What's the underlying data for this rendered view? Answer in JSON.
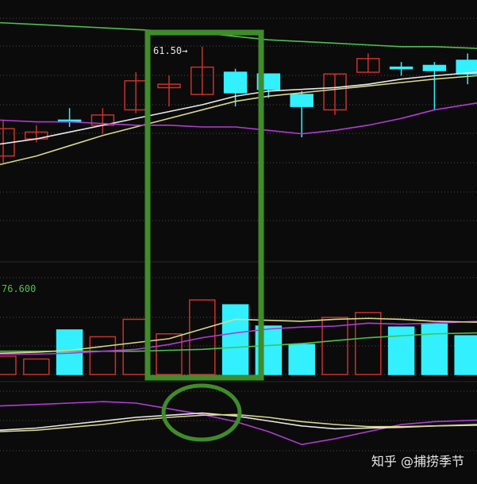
{
  "watermark": "知乎 @捕捞季节",
  "colors": {
    "background": "#0b0b0b",
    "grid": "#4a4a4a",
    "up": "#c8322a",
    "down": "#33f0ff",
    "ma_white": "#e8e8e8",
    "ma_yellow": "#d8d88a",
    "ma_green": "#4cc04c",
    "ma_purple": "#b23bd6",
    "highlight": "#3f8c2a"
  },
  "chart_data": [
    {
      "type": "candlestick",
      "title": "",
      "grid": true,
      "annotation": {
        "text": "61.50→",
        "target_index": 5,
        "value": 61.5
      },
      "ylim": [
        51.0,
        64.0
      ],
      "candles": [
        {
          "i": 0,
          "open": 55.8,
          "close": 57.4,
          "high": 57.9,
          "low": 55.4,
          "dir": "up"
        },
        {
          "i": 1,
          "open": 56.8,
          "close": 57.2,
          "high": 57.6,
          "low": 56.6,
          "dir": "up"
        },
        {
          "i": 2,
          "open": 57.9,
          "close": 57.8,
          "high": 58.6,
          "low": 57.5,
          "dir": "down"
        },
        {
          "i": 3,
          "open": 57.6,
          "close": 58.2,
          "high": 58.6,
          "low": 57.1,
          "dir": "up"
        },
        {
          "i": 4,
          "open": 58.5,
          "close": 60.2,
          "high": 60.7,
          "low": 58.3,
          "dir": "up"
        },
        {
          "i": 5,
          "open": 59.8,
          "close": 60.0,
          "high": 60.5,
          "low": 58.7,
          "dir": "up"
        },
        {
          "i": 6,
          "open": 59.4,
          "close": 61.0,
          "high": 62.2,
          "low": 59.4,
          "dir": "up"
        },
        {
          "i": 7,
          "open": 60.7,
          "close": 59.5,
          "high": 60.9,
          "low": 58.7,
          "dir": "down"
        },
        {
          "i": 8,
          "open": 60.6,
          "close": 59.7,
          "high": 60.6,
          "low": 59.2,
          "dir": "down"
        },
        {
          "i": 9,
          "open": 59.4,
          "close": 58.7,
          "high": 59.6,
          "low": 56.9,
          "dir": "down"
        },
        {
          "i": 10,
          "open": 58.5,
          "close": 60.6,
          "high": 60.6,
          "low": 58.2,
          "dir": "up"
        },
        {
          "i": 11,
          "open": 60.7,
          "close": 61.5,
          "high": 61.8,
          "low": 60.7,
          "dir": "up"
        },
        {
          "i": 12,
          "open": 61.0,
          "close": 61.0,
          "high": 61.3,
          "low": 60.5,
          "dir": "down"
        },
        {
          "i": 13,
          "open": 61.1,
          "close": 60.8,
          "high": 61.3,
          "low": 58.5,
          "dir": "down"
        },
        {
          "i": 14,
          "open": 61.4,
          "close": 60.6,
          "high": 61.8,
          "low": 60.0,
          "dir": "down"
        }
      ],
      "ma_lines": [
        {
          "color": "ma_white",
          "values": [
            56.5,
            56.8,
            57.2,
            57.6,
            58.0,
            58.4,
            58.8,
            59.3,
            59.6,
            59.7,
            59.8,
            60.0,
            60.3,
            60.5,
            60.7
          ]
        },
        {
          "color": "ma_yellow",
          "values": [
            55.3,
            55.8,
            56.4,
            57.0,
            57.5,
            58.0,
            58.5,
            59.0,
            59.3,
            59.5,
            59.7,
            59.9,
            60.1,
            60.3,
            60.5
          ]
        },
        {
          "color": "ma_green",
          "values": [
            63.6,
            63.5,
            63.4,
            63.3,
            63.2,
            63.1,
            63.0,
            62.8,
            62.6,
            62.5,
            62.4,
            62.3,
            62.2,
            62.2,
            62.1
          ]
        },
        {
          "color": "ma_purple",
          "values": [
            57.9,
            57.8,
            57.8,
            57.7,
            57.6,
            57.6,
            57.5,
            57.5,
            57.3,
            57.1,
            57.3,
            57.6,
            58.0,
            58.5,
            58.9
          ]
        }
      ]
    },
    {
      "type": "bar",
      "title": "",
      "value_label": "76.600",
      "grid": true,
      "ylim": [
        0,
        100
      ],
      "bars": [
        {
          "i": 0,
          "value": 19,
          "dir": "up"
        },
        {
          "i": 1,
          "value": 16,
          "dir": "up"
        },
        {
          "i": 2,
          "value": 46,
          "dir": "down"
        },
        {
          "i": 3,
          "value": 39,
          "dir": "up"
        },
        {
          "i": 4,
          "value": 57,
          "dir": "up"
        },
        {
          "i": 5,
          "value": 42,
          "dir": "up"
        },
        {
          "i": 6,
          "value": 77,
          "dir": "up"
        },
        {
          "i": 7,
          "value": 72,
          "dir": "down"
        },
        {
          "i": 8,
          "value": 50,
          "dir": "down"
        },
        {
          "i": 9,
          "value": 31,
          "dir": "down"
        },
        {
          "i": 10,
          "value": 59,
          "dir": "up"
        },
        {
          "i": 11,
          "value": 64,
          "dir": "up"
        },
        {
          "i": 12,
          "value": 49,
          "dir": "down"
        },
        {
          "i": 13,
          "value": 52,
          "dir": "down"
        },
        {
          "i": 14,
          "value": 40,
          "dir": "down"
        }
      ],
      "ma_lines": [
        {
          "color": "ma_green",
          "values": [
            24,
            24,
            24,
            24,
            24,
            25,
            26,
            28,
            30,
            32,
            35,
            38,
            40,
            42,
            43
          ]
        },
        {
          "color": "ma_purple",
          "values": [
            21,
            21,
            22,
            24,
            26,
            31,
            38,
            43,
            47,
            49,
            50,
            53,
            52,
            53,
            55
          ]
        },
        {
          "color": "ma_yellow",
          "values": [
            22,
            23,
            25,
            29,
            33,
            37,
            47,
            57,
            56,
            55,
            57,
            58,
            57,
            55,
            54
          ]
        }
      ]
    },
    {
      "type": "line",
      "title": "",
      "grid": true,
      "ylim": [
        0,
        100
      ],
      "series": [
        {
          "color": "ma_purple",
          "values": [
            76,
            78,
            80,
            82,
            80,
            72,
            64,
            54,
            40,
            22,
            30,
            40,
            50,
            54,
            56
          ]
        },
        {
          "color": "ma_white",
          "values": [
            42,
            45,
            50,
            55,
            60,
            63,
            66,
            62,
            55,
            48,
            44,
            45,
            46,
            48,
            50
          ]
        },
        {
          "color": "ma_yellow",
          "values": [
            40,
            42,
            46,
            50,
            56,
            60,
            63,
            64,
            60,
            54,
            50,
            47,
            47,
            48,
            49
          ]
        }
      ]
    }
  ]
}
